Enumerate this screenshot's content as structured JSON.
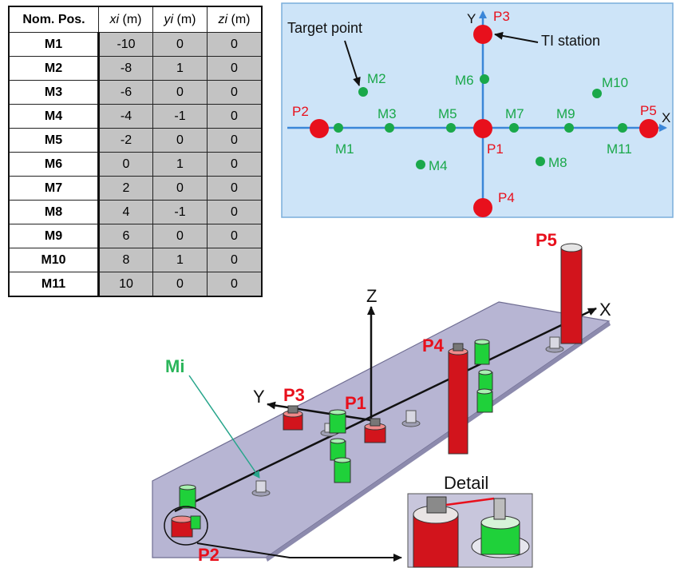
{
  "table": {
    "headers": [
      {
        "main": "Nom. Pos.",
        "unit": ""
      },
      {
        "main": "xi",
        "unit": " (m)"
      },
      {
        "main": "yi",
        "unit": " (m)"
      },
      {
        "main": "zi",
        "unit": " (m)"
      }
    ],
    "rows": [
      {
        "name": "M1",
        "x": "-10",
        "y": "0",
        "z": "0"
      },
      {
        "name": "M2",
        "x": "-8",
        "y": "1",
        "z": "0"
      },
      {
        "name": "M3",
        "x": "-6",
        "y": "0",
        "z": "0"
      },
      {
        "name": "M4",
        "x": "-4",
        "y": "-1",
        "z": "0"
      },
      {
        "name": "M5",
        "x": "-2",
        "y": "0",
        "z": "0"
      },
      {
        "name": "M6",
        "x": "0",
        "y": "1",
        "z": "0"
      },
      {
        "name": "M7",
        "x": "2",
        "y": "0",
        "z": "0"
      },
      {
        "name": "M8",
        "x": "4",
        "y": "-1",
        "z": "0"
      },
      {
        "name": "M9",
        "x": "6",
        "y": "0",
        "z": "0"
      },
      {
        "name": "M10",
        "x": "8",
        "y": "1",
        "z": "0"
      },
      {
        "name": "M11",
        "x": "10",
        "y": "0",
        "z": "0"
      }
    ]
  },
  "plan": {
    "target_label": "Target point",
    "station_label": "TI station",
    "axis_x": "X",
    "axis_y": "Y",
    "stations": [
      "P1",
      "P2",
      "P3",
      "P4",
      "P5"
    ],
    "targets": [
      "M1",
      "M2",
      "M3",
      "M4",
      "M5",
      "M6",
      "M7",
      "M8",
      "M9",
      "M10",
      "M11"
    ]
  },
  "iso": {
    "axis_x": "X",
    "axis_y": "Y",
    "axis_z": "Z",
    "mi_label": "Mi",
    "detail_label": "Detail",
    "station_labels": [
      "P1",
      "P2",
      "P3",
      "P4",
      "P5"
    ]
  },
  "colors": {
    "plan_bg": "#cde4f8",
    "axis": "#3a86d8",
    "station": "#e8101c",
    "target": "#1aa84a",
    "label_red": "#e8101c",
    "label_green": "#1aa84a",
    "plate": "#b7b5d3"
  }
}
